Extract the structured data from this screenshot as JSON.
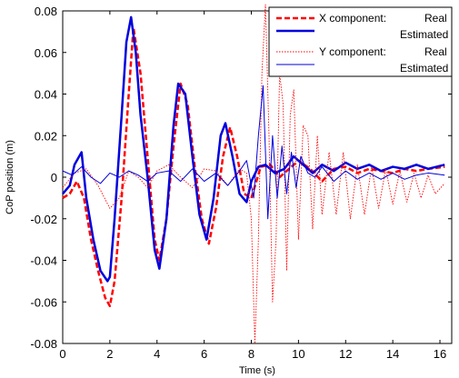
{
  "chart_data": {
    "type": "line",
    "title": "",
    "xlabel": "Time (s)",
    "ylabel": "CoP position (m)",
    "xlim": [
      0,
      16.5
    ],
    "ylim": [
      -0.08,
      0.08
    ],
    "xticks": [
      0,
      2,
      4,
      6,
      8,
      10,
      12,
      14,
      16
    ],
    "yticks": [
      -0.08,
      -0.06,
      -0.04,
      -0.02,
      0,
      0.02,
      0.04,
      0.06,
      0.08
    ],
    "xtick_labels": [
      "0",
      "2",
      "4",
      "6",
      "8",
      "10",
      "12",
      "14",
      "16"
    ],
    "ytick_labels": [
      "-0.08",
      "-0.06",
      "-0.04",
      "-0.02",
      "0",
      "0.02",
      "0.04",
      "0.06",
      "0.08"
    ],
    "grid": false,
    "legend_position": "top-right",
    "legend": {
      "group_x": "X component:",
      "group_y": "Y component:",
      "real": "Real",
      "estimated": "Estimated"
    },
    "series": [
      {
        "name": "X component: Real",
        "color": "#ff0000",
        "style": "dashed",
        "x": [
          0,
          0.3,
          0.6,
          0.9,
          1.2,
          1.5,
          1.8,
          2.0,
          2.2,
          2.5,
          2.8,
          3.0,
          3.3,
          3.6,
          3.9,
          4.1,
          4.4,
          4.7,
          5.0,
          5.3,
          5.6,
          5.9,
          6.2,
          6.5,
          6.8,
          7.1,
          7.4,
          7.7,
          8.0,
          8.4,
          8.8,
          9.2,
          9.6,
          10.0,
          10.5,
          11.0,
          11.5,
          12.0,
          12.5,
          13.0,
          13.5,
          14.0,
          14.5,
          15.0,
          15.5,
          16.2
        ],
        "y": [
          -0.01,
          -0.008,
          -0.002,
          -0.01,
          -0.03,
          -0.045,
          -0.058,
          -0.062,
          -0.05,
          -0.01,
          0.04,
          0.072,
          0.05,
          0.01,
          -0.03,
          -0.04,
          -0.02,
          0.015,
          0.045,
          0.035,
          0.005,
          -0.02,
          -0.032,
          -0.015,
          0.01,
          0.024,
          0.01,
          -0.008,
          -0.01,
          0.005,
          0.006,
          0,
          0.004,
          0.008,
          0.004,
          -0.002,
          0.004,
          0.005,
          0.002,
          0.004,
          0.003,
          0.002,
          0.004,
          0.003,
          0.004,
          0.005
        ]
      },
      {
        "name": "X component: Estimated",
        "color": "#0000dd",
        "style": "solid-thick",
        "x": [
          0,
          0.3,
          0.5,
          0.8,
          1.0,
          1.3,
          1.6,
          1.9,
          2.0,
          2.2,
          2.5,
          2.7,
          2.9,
          3.1,
          3.3,
          3.6,
          3.9,
          4.1,
          4.4,
          4.7,
          4.9,
          5.2,
          5.5,
          5.8,
          6.1,
          6.4,
          6.7,
          6.9,
          7.2,
          7.5,
          7.8,
          8.0,
          8.3,
          8.6,
          9.0,
          9.4,
          9.8,
          10.2,
          10.6,
          11.0,
          11.5,
          12.0,
          12.5,
          13.0,
          13.5,
          14.0,
          14.5,
          15.0,
          15.5,
          16.2
        ],
        "y": [
          -0.008,
          -0.004,
          0.006,
          0.012,
          -0.01,
          -0.03,
          -0.045,
          -0.05,
          -0.048,
          -0.02,
          0.03,
          0.065,
          0.077,
          0.06,
          0.03,
          0.0,
          -0.035,
          -0.044,
          -0.02,
          0.025,
          0.045,
          0.04,
          0.01,
          -0.018,
          -0.03,
          -0.01,
          0.02,
          0.026,
          0.01,
          -0.008,
          -0.012,
          -0.002,
          0.005,
          0.006,
          0.002,
          0.004,
          0.01,
          0.006,
          0.002,
          0.006,
          0.003,
          0.007,
          0.004,
          0.006,
          0.003,
          0.005,
          0.004,
          0.006,
          0.004,
          0.006
        ]
      },
      {
        "name": "Y component: Real",
        "color": "#ff0000",
        "style": "dotted",
        "x": [
          0,
          0.5,
          1.0,
          1.5,
          2.0,
          2.4,
          2.8,
          3.2,
          3.6,
          4.0,
          4.5,
          5.0,
          5.5,
          6.0,
          6.5,
          7.0,
          7.5,
          7.8,
          8.0,
          8.15,
          8.3,
          8.45,
          8.6,
          8.75,
          8.9,
          9.05,
          9.2,
          9.35,
          9.5,
          9.65,
          9.8,
          10.0,
          10.2,
          10.4,
          10.6,
          10.8,
          11.0,
          11.3,
          11.6,
          11.9,
          12.2,
          12.5,
          12.8,
          13.1,
          13.4,
          13.7,
          14.0,
          14.3,
          14.6,
          14.9,
          15.2,
          15.5,
          15.8,
          16.2
        ],
        "y": [
          -0.005,
          0.002,
          0.004,
          -0.004,
          -0.015,
          -0.01,
          0.003,
          0.0,
          -0.005,
          0.003,
          0.006,
          0.0,
          -0.005,
          0.004,
          0.003,
          -0.004,
          0.004,
          0.002,
          -0.02,
          -0.08,
          -0.03,
          0.05,
          0.083,
          0.02,
          -0.06,
          -0.03,
          0.05,
          0.035,
          -0.045,
          0.03,
          0.042,
          -0.03,
          0.025,
          0.02,
          -0.025,
          0.02,
          -0.018,
          0.012,
          -0.018,
          0.012,
          -0.02,
          0.006,
          -0.018,
          0.005,
          -0.015,
          0.004,
          -0.013,
          0.003,
          -0.012,
          0.002,
          -0.01,
          0.001,
          -0.008,
          -0.003
        ]
      },
      {
        "name": "Y component: Estimated",
        "color": "#0000dd",
        "style": "solid-thin",
        "x": [
          0,
          0.4,
          0.8,
          1.2,
          1.6,
          2.0,
          2.4,
          2.8,
          3.2,
          3.6,
          4.0,
          4.5,
          5.0,
          5.5,
          6.0,
          6.5,
          7.0,
          7.5,
          7.8,
          8.1,
          8.3,
          8.5,
          8.7,
          8.9,
          9.1,
          9.3,
          9.5,
          9.7,
          9.9,
          10.1,
          10.4,
          10.7,
          11.0,
          11.5,
          12.0,
          12.5,
          13.0,
          13.5,
          14.0,
          14.5,
          15.0,
          15.5,
          16.2
        ],
        "y": [
          0.003,
          0.001,
          0.005,
          0.0,
          -0.003,
          0.002,
          0.0,
          0.003,
          0.001,
          -0.002,
          0.002,
          0.003,
          -0.002,
          0.004,
          -0.002,
          0.002,
          -0.004,
          0.003,
          0.008,
          -0.01,
          0.02,
          0.044,
          -0.02,
          0.02,
          -0.01,
          0.015,
          -0.008,
          0.012,
          -0.005,
          0.01,
          0.002,
          0.0,
          0.005,
          -0.002,
          0.003,
          -0.001,
          0.002,
          -0.001,
          0.002,
          -0.001,
          0.001,
          0.002,
          0.001
        ]
      }
    ]
  }
}
